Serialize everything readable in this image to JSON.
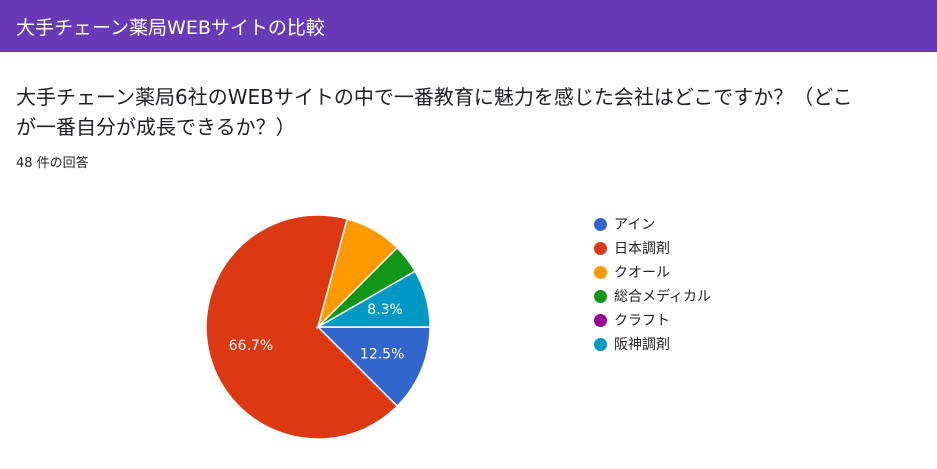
{
  "header": {
    "title": "大手チェーン薬局WEBサイトの比較"
  },
  "question": {
    "text": "大手チェーン薬局6社のWEBサイトの中で一番教育に魅力を感じた会社はどこですか？（どこが一番自分が成長できるか？）",
    "response_count": "48 件の回答"
  },
  "chart_data": {
    "type": "pie",
    "categories": [
      "アイン",
      "日本調剤",
      "クオール",
      "総合メディカル",
      "クラフト",
      "阪神調剤"
    ],
    "values": [
      12.5,
      66.7,
      8.3,
      4.2,
      0,
      8.3
    ],
    "labels": [
      "12.5%",
      "66.7%",
      "",
      "",
      "",
      "8.3%"
    ],
    "colors": [
      "#3366cc",
      "#dc3912",
      "#ff9900",
      "#109618",
      "#990099",
      "#0099c6"
    ],
    "legend_position": "right",
    "start": "3 o'clock",
    "direction": "clockwise"
  }
}
